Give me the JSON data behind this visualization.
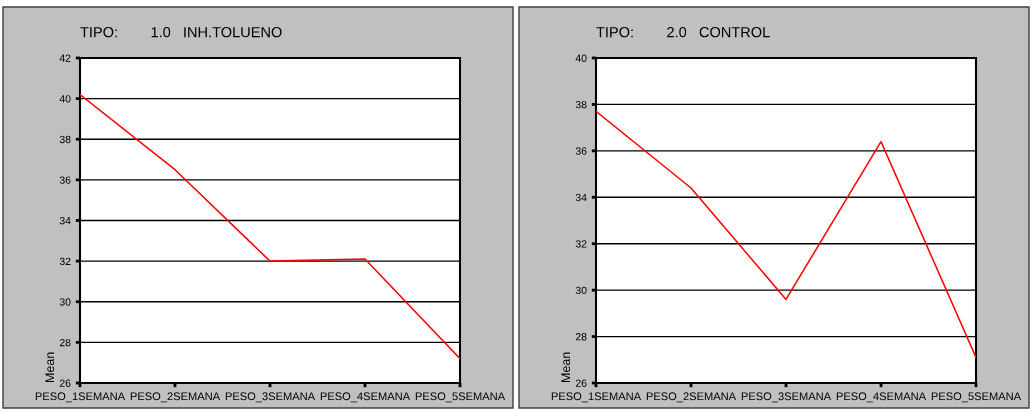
{
  "chart_data": [
    {
      "type": "line",
      "title": "TIPO:        1.0   INH.TOLUENO",
      "ylabel": "Mean",
      "categories": [
        "PESO_1SEMANA",
        "PESO_2SEMANA",
        "PESO_3SEMANA",
        "PESO_4SEMANA",
        "PESO_5SEMANA"
      ],
      "series": [
        {
          "color": "#ff0000",
          "values": [
            40.2,
            36.5,
            32.0,
            32.1,
            27.2
          ]
        }
      ],
      "ylim": [
        26,
        42
      ],
      "yticks": [
        26,
        28,
        30,
        32,
        34,
        36,
        38,
        40,
        42
      ],
      "grid": "y"
    },
    {
      "type": "line",
      "title": "TIPO:        2.0   CONTROL",
      "ylabel": "Mean",
      "categories": [
        "PESO_1SEMANA",
        "PESO_2SEMANA",
        "PESO_3SEMANA",
        "PESO_4SEMANA",
        "PESO_5SEMANA"
      ],
      "series": [
        {
          "color": "#ff0000",
          "values": [
            37.7,
            34.4,
            29.6,
            36.4,
            27.1
          ]
        }
      ],
      "ylim": [
        26,
        40
      ],
      "yticks": [
        26,
        28,
        30,
        32,
        34,
        36,
        38,
        40
      ],
      "grid": "y"
    }
  ]
}
